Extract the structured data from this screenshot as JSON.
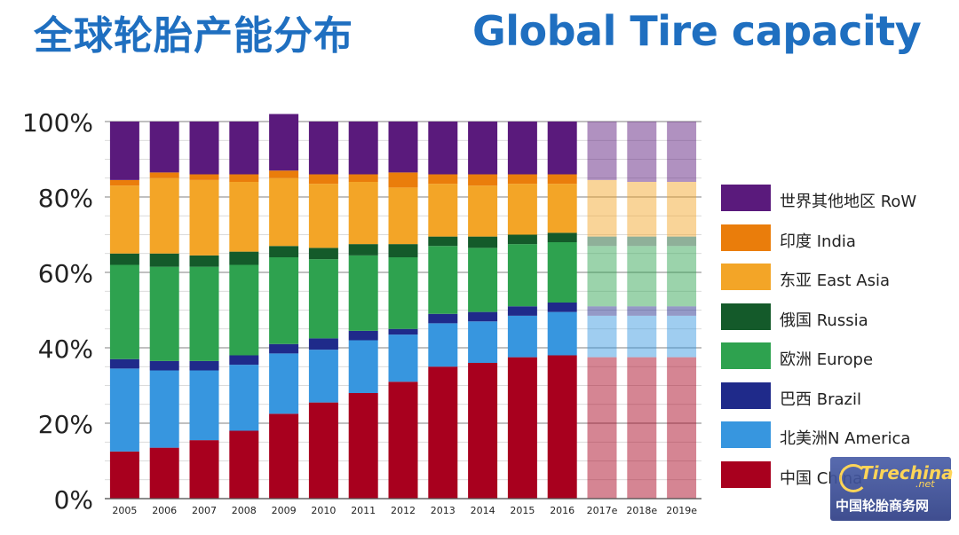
{
  "header": {
    "title_cn": "全球轮胎产能分布",
    "title_en": "Global Tire capacity"
  },
  "watermark": {
    "logo": "Tirechina",
    "domain": ".net",
    "cn": "中国轮胎商务网"
  },
  "chart_data": {
    "type": "bar",
    "stacked": true,
    "percent": true,
    "categories": [
      "2005",
      "2006",
      "2007",
      "2008",
      "2009",
      "2010",
      "2011",
      "2012",
      "2013",
      "2014",
      "2015",
      "2016",
      "2017e",
      "2018e",
      "2019e"
    ],
    "estimated_from_index": 12,
    "yticks": [
      "0%",
      "20%",
      "40%",
      "60%",
      "80%",
      "100%"
    ],
    "ylim": [
      0,
      100
    ],
    "grid": true,
    "legend_position": "right",
    "series": [
      {
        "name": "中国 China",
        "color": "#a8001e",
        "values": [
          12.5,
          13.5,
          15.5,
          18,
          22.5,
          25.5,
          28,
          31,
          35,
          36,
          37.5,
          38,
          37.5,
          37.5,
          37.5
        ]
      },
      {
        "name": "北美洲N America",
        "color": "#3796df",
        "values": [
          22,
          20.5,
          18.5,
          17.5,
          16,
          14,
          14,
          12.5,
          11.5,
          11,
          11,
          11.5,
          11,
          11,
          11
        ]
      },
      {
        "name": "巴西 Brazil",
        "color": "#1f2a8a",
        "values": [
          2.5,
          2.5,
          2.5,
          2.5,
          2.5,
          3,
          2.5,
          1.5,
          2.5,
          2.5,
          2.5,
          2.5,
          2.5,
          2.5,
          2.5
        ]
      },
      {
        "name": "欧洲 Europe",
        "color": "#2ea24f",
        "values": [
          25,
          25,
          25,
          24,
          23,
          21,
          20,
          19,
          18,
          17,
          16.5,
          16,
          16,
          16,
          16
        ]
      },
      {
        "name": "俄国 Russia",
        "color": "#145a2a",
        "values": [
          3,
          3.5,
          3,
          3.5,
          3,
          3,
          3,
          3.5,
          2.5,
          3,
          2.5,
          2.5,
          2.5,
          2.5,
          2.5
        ]
      },
      {
        "name": "东亚 East Asia",
        "color": "#f3a527",
        "values": [
          18,
          20,
          20,
          18.5,
          18,
          17,
          16.5,
          15,
          14,
          13.5,
          13.5,
          13,
          15,
          14.5,
          14.5
        ]
      },
      {
        "name": "印度 India",
        "color": "#ea7d0b",
        "values": [
          1.5,
          1.5,
          1.5,
          2,
          2,
          2.5,
          2,
          4,
          2.5,
          3,
          2.5,
          2.5,
          0,
          0,
          0
        ]
      },
      {
        "name": "世界其他地区 RoW",
        "color": "#5a1a7c",
        "values": [
          15.5,
          13.5,
          14,
          14,
          15,
          14,
          14,
          13.5,
          14,
          14,
          14,
          14,
          15.5,
          16,
          16
        ]
      }
    ]
  }
}
